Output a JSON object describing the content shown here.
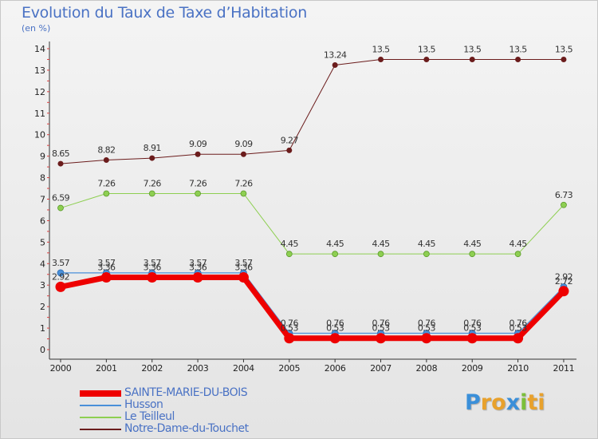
{
  "header": {
    "title": "Evolution du Taux de Taxe d’Habitation",
    "subtitle": "(en %)"
  },
  "brand": {
    "letters": [
      "P",
      "r",
      "o",
      "x",
      "i",
      "t",
      "i"
    ],
    "colors": [
      "#3a8fd9",
      "#e8a12c",
      "#e8a12c",
      "#3a8fd9",
      "#7bbf3a",
      "#e8a12c",
      "#e8a12c"
    ]
  },
  "chart_data": {
    "type": "line",
    "title": "Evolution du Taux de Taxe d’Habitation",
    "ylabel": "(en %)",
    "xlabel": "",
    "ylim": [
      0,
      14
    ],
    "yticks": [
      0,
      1,
      2,
      3,
      4,
      5,
      6,
      7,
      8,
      9,
      10,
      11,
      12,
      13,
      14
    ],
    "grid": false,
    "categories": [
      "2000",
      "2001",
      "2002",
      "2003",
      "2004",
      "2005",
      "2006",
      "2007",
      "2008",
      "2009",
      "2010",
      "2011"
    ],
    "series": [
      {
        "name": "Notre-Dame-du-Touchet",
        "color": "#6b1c1c",
        "values": [
          8.65,
          8.82,
          8.91,
          9.09,
          9.09,
          9.27,
          13.24,
          13.5,
          13.5,
          13.5,
          13.5,
          13.5
        ],
        "labels": [
          "8.65",
          "8.82",
          "8.91",
          "9.09",
          "9.09",
          "9.27",
          "13.24",
          "13.5",
          "13.5",
          "13.5",
          "13.5",
          "13.5"
        ]
      },
      {
        "name": "Le Teilleul",
        "color": "#8ecf52",
        "values": [
          6.59,
          7.26,
          7.26,
          7.26,
          7.26,
          4.45,
          4.45,
          4.45,
          4.45,
          4.45,
          4.45,
          6.73
        ],
        "labels": [
          "6.59",
          "7.26",
          "7.26",
          "7.26",
          "7.26",
          "4.45",
          "4.45",
          "4.45",
          "4.45",
          "4.45",
          "4.45",
          "6.73"
        ]
      },
      {
        "name": "Husson",
        "color": "#4a90d9",
        "values": [
          3.57,
          3.57,
          3.57,
          3.57,
          3.57,
          0.76,
          0.76,
          0.76,
          0.76,
          0.76,
          0.76,
          2.92
        ],
        "labels": [
          "3.57",
          "3.57",
          "3.57",
          "3.57",
          "3.57",
          "0.76",
          "0.76",
          "0.76",
          "0.76",
          "0.76",
          "0.76",
          "2.92"
        ]
      },
      {
        "name": "SAINTE-MARIE-DU-BOIS",
        "color": "#ee0000",
        "values": [
          2.92,
          3.36,
          3.36,
          3.36,
          3.36,
          0.53,
          0.53,
          0.53,
          0.53,
          0.53,
          0.53,
          2.72
        ],
        "labels": [
          "2.92",
          "3.36",
          "3.36",
          "3.36",
          "3.36",
          "0.53",
          "0.53",
          "0.53",
          "0.53",
          "0.53",
          "0.53",
          "2.72"
        ]
      }
    ],
    "legend": {
      "position": "bottom-left",
      "order": [
        "SAINTE-MARIE-DU-BOIS",
        "Husson",
        "Le Teilleul",
        "Notre-Dame-du-Touchet"
      ]
    }
  }
}
